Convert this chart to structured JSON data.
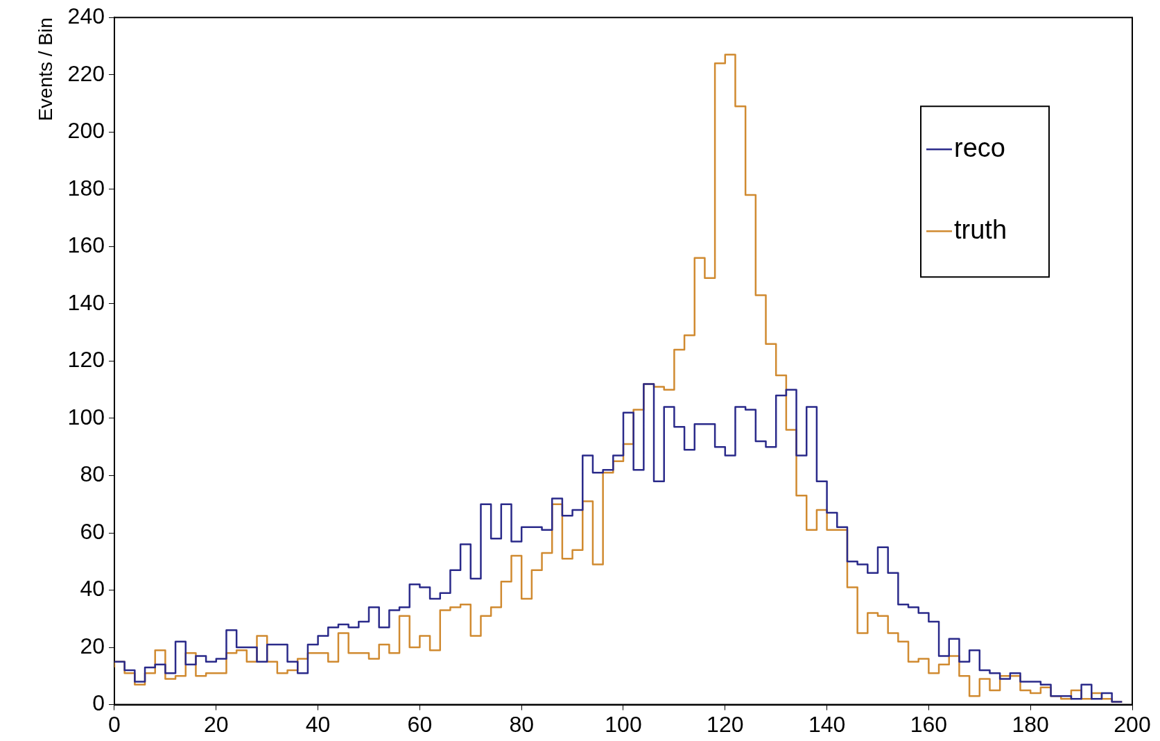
{
  "chart_data": {
    "type": "step",
    "ylabel": "Events / Bin",
    "x": [
      0,
      2,
      4,
      6,
      8,
      10,
      12,
      14,
      16,
      18,
      20,
      22,
      24,
      26,
      28,
      30,
      32,
      34,
      36,
      38,
      40,
      42,
      44,
      46,
      48,
      50,
      52,
      54,
      56,
      58,
      60,
      62,
      64,
      66,
      68,
      70,
      72,
      74,
      76,
      78,
      80,
      82,
      84,
      86,
      88,
      90,
      92,
      94,
      96,
      98,
      100,
      102,
      104,
      106,
      108,
      110,
      112,
      114,
      116,
      118,
      120,
      122,
      124,
      126,
      128,
      130,
      132,
      134,
      136,
      138,
      140,
      142,
      144,
      146,
      148,
      150,
      152,
      154,
      156,
      158,
      160,
      162,
      164,
      166,
      168,
      170,
      172,
      174,
      176,
      178,
      180,
      182,
      184,
      186,
      188,
      190,
      192,
      194,
      196,
      198
    ],
    "series": [
      {
        "name": "reco",
        "color": "#2a2a8a",
        "values": [
          15,
          15,
          12,
          8,
          13,
          14,
          11,
          22,
          14,
          17,
          15,
          16,
          26,
          20,
          20,
          15,
          21,
          21,
          15,
          11,
          21,
          24,
          27,
          28,
          27,
          29,
          34,
          27,
          33,
          34,
          42,
          41,
          37,
          39,
          47,
          56,
          44,
          70,
          58,
          70,
          57,
          62,
          62,
          61,
          72,
          66,
          68,
          87,
          81,
          82,
          87,
          102,
          82,
          112,
          78,
          104,
          97,
          89,
          98,
          98,
          90,
          87,
          104,
          103,
          92,
          90,
          108,
          110,
          87,
          104,
          78,
          67,
          62,
          50,
          49,
          46,
          55,
          46,
          35,
          34,
          32,
          29,
          17,
          23,
          15,
          19,
          12,
          11,
          9,
          11,
          8,
          8,
          7,
          3,
          3,
          2,
          7,
          2,
          4,
          1
        ]
      },
      {
        "name": "truth",
        "color": "#d08a30",
        "values": [
          13,
          15,
          11,
          7,
          11,
          19,
          9,
          10,
          18,
          10,
          11,
          11,
          18,
          19,
          15,
          24,
          15,
          11,
          12,
          16,
          18,
          18,
          15,
          25,
          18,
          18,
          16,
          21,
          18,
          31,
          20,
          24,
          19,
          33,
          34,
          35,
          24,
          31,
          34,
          43,
          52,
          37,
          47,
          53,
          70,
          51,
          54,
          71,
          49,
          81,
          85,
          91,
          103,
          112,
          111,
          110,
          124,
          129,
          156,
          149,
          224,
          227,
          209,
          178,
          143,
          126,
          115,
          96,
          73,
          61,
          68,
          61,
          61,
          41,
          25,
          32,
          31,
          25,
          22,
          15,
          16,
          11,
          14,
          17,
          10,
          3,
          9,
          5,
          10,
          10,
          5,
          4,
          6,
          3,
          2,
          5,
          2,
          4,
          2,
          1
        ]
      }
    ],
    "xlim": [
      0,
      200
    ],
    "xticks": [
      0,
      20,
      40,
      60,
      80,
      100,
      120,
      140,
      160,
      180,
      200
    ],
    "ylim": [
      0,
      240
    ],
    "yticks": [
      0,
      20,
      40,
      60,
      80,
      100,
      120,
      140,
      160,
      180,
      200,
      220,
      240
    ],
    "grid": false,
    "legend": "top right"
  }
}
